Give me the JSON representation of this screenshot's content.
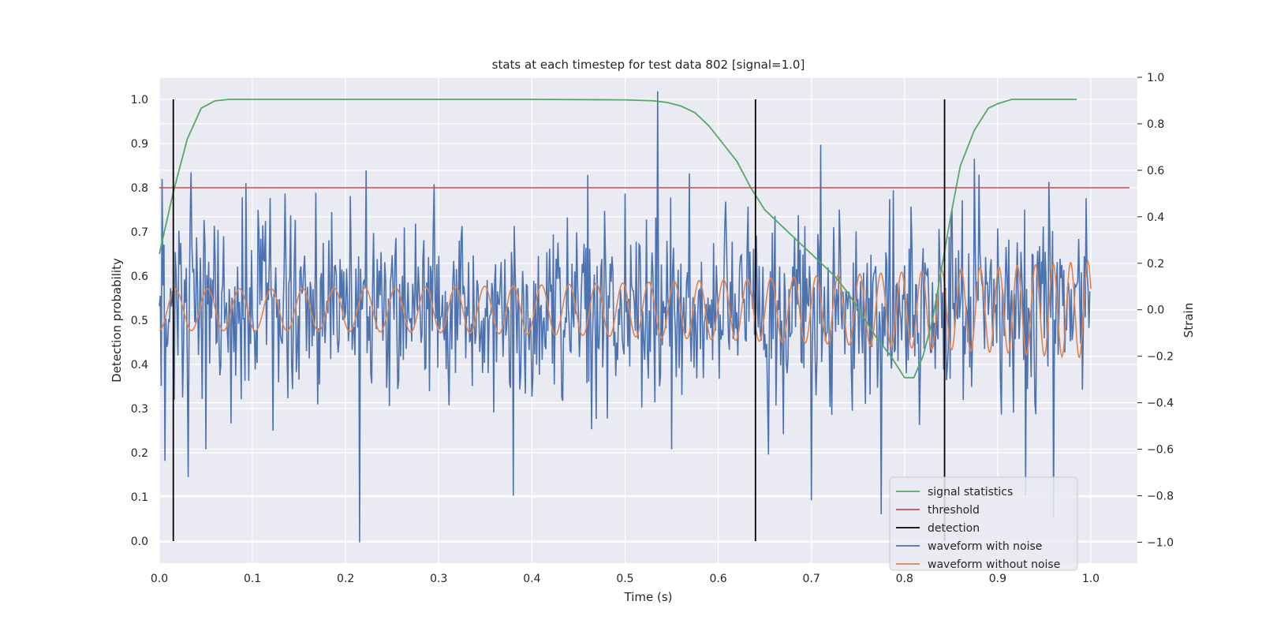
{
  "chart_data": {
    "type": "line",
    "title": "stats at each timestep for test data 802 [signal=1.0]",
    "xlabel": "Time (s)",
    "ylabel": "Detection probability",
    "y2label": "Strain",
    "xlim": [
      0.0,
      1.05
    ],
    "ylim": [
      -0.05,
      1.05
    ],
    "y2lim": [
      -1.09,
      1.0
    ],
    "xticks": [
      "0.0",
      "0.1",
      "0.2",
      "0.3",
      "0.4",
      "0.5",
      "0.6",
      "0.7",
      "0.8",
      "0.9",
      "1.0"
    ],
    "yticks": [
      "0.0",
      "0.1",
      "0.2",
      "0.3",
      "0.4",
      "0.5",
      "0.6",
      "0.7",
      "0.8",
      "0.9",
      "1.0"
    ],
    "y2ticks": [
      "−1.0",
      "−0.8",
      "−0.6",
      "−0.4",
      "−0.2",
      "0.0",
      "0.2",
      "0.4",
      "0.6",
      "0.8",
      "1.0"
    ],
    "grid": true,
    "legend_position": "lower right",
    "colors": {
      "signal_statistics": "#55a868",
      "threshold": "#c44e52",
      "detection": "#000000",
      "waveform_with_noise": "#4c72b0",
      "waveform_without_noise": "#dd8452",
      "plot_background": "#eaeaf2",
      "grid": "#ffffff"
    },
    "signal_statistics": {
      "name": "signal statistics",
      "x": [
        0.0,
        0.015,
        0.03,
        0.045,
        0.06,
        0.075,
        0.09,
        0.2,
        0.3,
        0.4,
        0.5,
        0.53,
        0.545,
        0.56,
        0.575,
        0.59,
        0.605,
        0.62,
        0.635,
        0.65,
        0.665,
        0.68,
        0.695,
        0.71,
        0.725,
        0.74,
        0.755,
        0.77,
        0.785,
        0.8,
        0.81,
        0.82,
        0.83,
        0.84,
        0.85,
        0.86,
        0.875,
        0.89,
        0.9,
        0.915,
        0.93,
        0.985
      ],
      "y": [
        0.65,
        0.79,
        0.91,
        0.98,
        0.997,
        1.0,
        1.0,
        1.0,
        1.0,
        1.0,
        0.999,
        0.997,
        0.993,
        0.985,
        0.97,
        0.94,
        0.9,
        0.86,
        0.8,
        0.75,
        0.72,
        0.69,
        0.66,
        0.63,
        0.6,
        0.56,
        0.51,
        0.46,
        0.42,
        0.37,
        0.37,
        0.42,
        0.5,
        0.62,
        0.74,
        0.85,
        0.93,
        0.98,
        0.99,
        1.0,
        1.0,
        1.0
      ]
    },
    "threshold": {
      "name": "threshold",
      "y": 0.8
    },
    "detection": {
      "name": "detection",
      "x": [
        0.015,
        0.64,
        0.843
      ],
      "y_range": [
        0.0,
        1.0
      ]
    },
    "waveform_with_noise": {
      "name": "waveform with noise",
      "axis": "right",
      "description_values": "noisy strain samples over 0–1 s, range about −1.0 to 1.0",
      "n_samples": 1000,
      "spikes": [
        [
          0.006,
          -0.65
        ],
        [
          0.021,
          0.34
        ],
        [
          0.031,
          -0.72
        ],
        [
          0.035,
          0.27
        ],
        [
          0.05,
          -0.6
        ],
        [
          0.122,
          -0.52
        ],
        [
          0.135,
          0.5
        ],
        [
          0.185,
          0.42
        ],
        [
          0.215,
          -1.0
        ],
        [
          0.222,
          0.6
        ],
        [
          0.295,
          0.54
        ],
        [
          0.38,
          -0.8
        ],
        [
          0.46,
          0.58
        ],
        [
          0.5,
          0.5
        ],
        [
          0.535,
          0.94
        ],
        [
          0.55,
          -0.6
        ],
        [
          0.7,
          -0.82
        ],
        [
          0.71,
          0.71
        ],
        [
          0.775,
          -0.88
        ],
        [
          0.875,
          0.65
        ],
        [
          0.9,
          0.35
        ],
        [
          0.93,
          -0.8
        ],
        [
          0.955,
          0.55
        ],
        [
          0.96,
          -0.89
        ],
        [
          0.995,
          0.48
        ]
      ]
    },
    "waveform_without_noise": {
      "name": "waveform without noise",
      "axis": "right",
      "description_values": "chirp sinusoid, amplitude grows from about 0.09 to 0.21, frequency about 29 Hz rising to 55 Hz"
    }
  }
}
